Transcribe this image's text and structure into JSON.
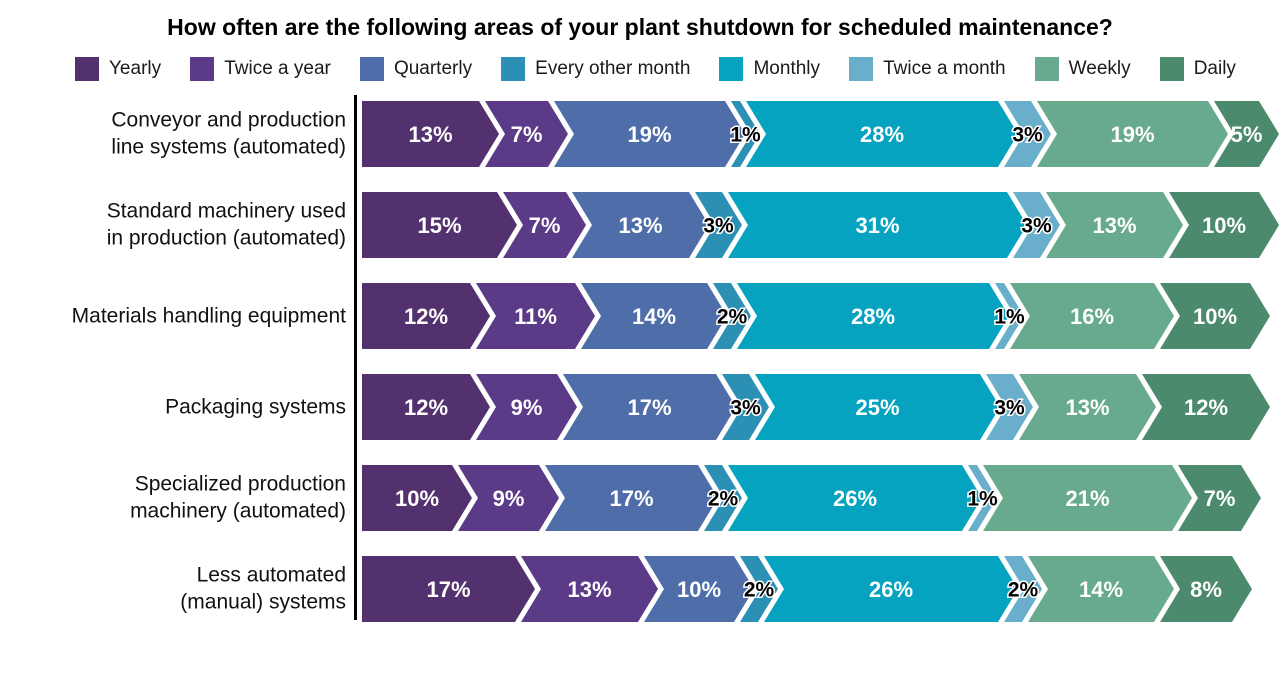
{
  "chart_data": {
    "type": "bar",
    "subtype": "horizontal-stacked-arrow",
    "title": "How often are the following areas of your plant shutdown for scheduled maintenance?",
    "unit": "%",
    "label_format": "{v}%",
    "legend_position": "top",
    "small_value_threshold": 4,
    "series": [
      {
        "name": "Yearly",
        "color": "#53316E"
      },
      {
        "name": "Twice a year",
        "color": "#5B3A88"
      },
      {
        "name": "Quarterly",
        "color": "#4F6DA9"
      },
      {
        "name": "Every other month",
        "color": "#2B90B4"
      },
      {
        "name": "Monthly",
        "color": "#06A3C0"
      },
      {
        "name": "Twice a month",
        "color": "#69AFCB"
      },
      {
        "name": "Weekly",
        "color": "#68AA8D"
      },
      {
        "name": "Daily",
        "color": "#4B8A6D"
      }
    ],
    "categories": [
      "Conveyor and production line systems (automated)",
      "Standard machinery used in production (automated)",
      "Materials handling equipment",
      "Packaging systems",
      "Specialized production machinery (automated)",
      "Less automated (manual) systems"
    ],
    "category_label_lines": [
      [
        "Conveyor and production",
        "line systems (automated)"
      ],
      [
        "Standard machinery used",
        "in production (automated)"
      ],
      [
        "Materials handling equipment"
      ],
      [
        "Packaging systems"
      ],
      [
        "Specialized production",
        "machinery (automated)"
      ],
      [
        "Less automated",
        "(manual) systems"
      ]
    ],
    "values": [
      [
        13,
        7,
        19,
        1,
        28,
        3,
        19,
        5
      ],
      [
        15,
        7,
        13,
        3,
        31,
        3,
        13,
        10
      ],
      [
        12,
        11,
        14,
        2,
        28,
        1,
        16,
        10
      ],
      [
        12,
        9,
        17,
        3,
        25,
        3,
        13,
        12
      ],
      [
        10,
        9,
        17,
        2,
        26,
        1,
        21,
        7
      ],
      [
        17,
        13,
        10,
        2,
        26,
        2,
        14,
        8
      ]
    ]
  }
}
